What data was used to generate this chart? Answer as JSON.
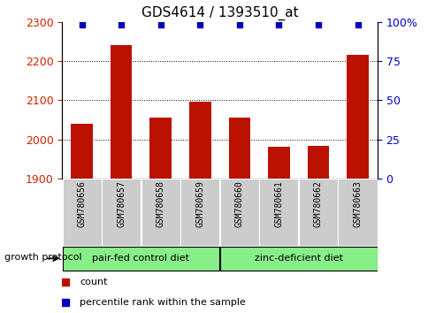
{
  "title": "GDS4614 / 1393510_at",
  "samples": [
    "GSM780656",
    "GSM780657",
    "GSM780658",
    "GSM780659",
    "GSM780660",
    "GSM780661",
    "GSM780662",
    "GSM780663"
  ],
  "counts": [
    2040,
    2240,
    2055,
    2095,
    2055,
    1980,
    1982,
    2215
  ],
  "percentiles": [
    98,
    98,
    98,
    98,
    98,
    98,
    98,
    98
  ],
  "ylim_left": [
    1900,
    2300
  ],
  "yticks_left": [
    1900,
    2000,
    2100,
    2200,
    2300
  ],
  "ylim_right": [
    0,
    100
  ],
  "yticks_right": [
    0,
    25,
    50,
    75,
    100
  ],
  "yticklabels_right": [
    "0",
    "25",
    "50",
    "75",
    "100%"
  ],
  "bar_color": "#bb1100",
  "percentile_color": "#0000bb",
  "group1_label": "pair-fed control diet",
  "group2_label": "zinc-deficient diet",
  "group_bg_color": "#88ee88",
  "sample_bg_color": "#cccccc",
  "axis_color_left": "#cc2200",
  "axis_color_right": "#0000cc",
  "bottom_label": "growth protocol",
  "grid_yticks": [
    2000,
    2100,
    2200
  ],
  "legend_items": [
    {
      "label": "count",
      "color": "#bb1100"
    },
    {
      "label": "percentile rank within the sample",
      "color": "#0000bb"
    }
  ]
}
